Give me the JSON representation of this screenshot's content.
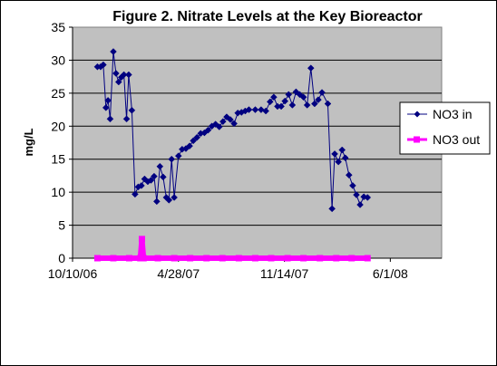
{
  "chart_data": {
    "type": "scatter",
    "title": "Figure 2. Nitrate Levels at the Key Bioreactor",
    "xlabel": "",
    "ylabel": "mg/L",
    "x_tick_labels": [
      "10/10/06",
      "4/28/07",
      "11/14/07",
      "6/1/08"
    ],
    "x_ticks": [
      "2006-10-10",
      "2007-04-28",
      "2007-11-14",
      "2008-06-01"
    ],
    "x_range": [
      "2006-10-10",
      "2008-09-06"
    ],
    "ylim": [
      0,
      35
    ],
    "y_ticks": [
      0,
      5,
      10,
      15,
      20,
      25,
      30,
      35
    ],
    "grid": "horizontal",
    "legend_position": "right",
    "background_color": "#C0C0C0",
    "series": [
      {
        "name": "NO3 in",
        "color": "#000080",
        "marker": "diamond",
        "line": true,
        "points": [
          [
            "2006-11-26",
            29.0
          ],
          [
            "2006-12-02",
            29.0
          ],
          [
            "2006-12-07",
            29.3
          ],
          [
            "2006-12-12",
            22.8
          ],
          [
            "2006-12-16",
            23.9
          ],
          [
            "2006-12-20",
            21.1
          ],
          [
            "2006-12-26",
            31.3
          ],
          [
            "2006-12-31",
            28.0
          ],
          [
            "2007-01-05",
            26.7
          ],
          [
            "2007-01-10",
            27.4
          ],
          [
            "2007-01-15",
            27.8
          ],
          [
            "2007-01-20",
            21.1
          ],
          [
            "2007-01-24",
            27.8
          ],
          [
            "2007-01-30",
            22.4
          ],
          [
            "2007-02-05",
            9.7
          ],
          [
            "2007-02-11",
            10.8
          ],
          [
            "2007-02-17",
            11.0
          ],
          [
            "2007-02-23",
            12.0
          ],
          [
            "2007-03-01",
            11.6
          ],
          [
            "2007-03-07",
            11.8
          ],
          [
            "2007-03-13",
            12.4
          ],
          [
            "2007-03-18",
            8.6
          ],
          [
            "2007-03-24",
            13.9
          ],
          [
            "2007-03-30",
            12.3
          ],
          [
            "2007-04-05",
            9.2
          ],
          [
            "2007-04-10",
            8.8
          ],
          [
            "2007-04-15",
            15.0
          ],
          [
            "2007-04-20",
            9.2
          ],
          [
            "2007-04-28",
            15.5
          ],
          [
            "2007-05-05",
            16.5
          ],
          [
            "2007-05-12",
            16.6
          ],
          [
            "2007-05-19",
            17.0
          ],
          [
            "2007-05-26",
            17.8
          ],
          [
            "2007-06-02",
            18.3
          ],
          [
            "2007-06-09",
            18.9
          ],
          [
            "2007-06-16",
            19.0
          ],
          [
            "2007-06-23",
            19.4
          ],
          [
            "2007-06-30",
            20.0
          ],
          [
            "2007-07-07",
            20.3
          ],
          [
            "2007-07-14",
            19.9
          ],
          [
            "2007-07-21",
            20.7
          ],
          [
            "2007-07-28",
            21.4
          ],
          [
            "2007-08-04",
            21.0
          ],
          [
            "2007-08-11",
            20.4
          ],
          [
            "2007-08-18",
            22.0
          ],
          [
            "2007-08-25",
            22.1
          ],
          [
            "2007-09-01",
            22.3
          ],
          [
            "2007-09-08",
            22.5
          ],
          [
            "2007-09-20",
            22.5
          ],
          [
            "2007-10-01",
            22.5
          ],
          [
            "2007-10-10",
            22.3
          ],
          [
            "2007-10-18",
            23.7
          ],
          [
            "2007-10-25",
            24.4
          ],
          [
            "2007-11-01",
            23.0
          ],
          [
            "2007-11-08",
            23.0
          ],
          [
            "2007-11-15",
            23.8
          ],
          [
            "2007-11-22",
            24.8
          ],
          [
            "2007-11-29",
            23.2
          ],
          [
            "2007-12-06",
            25.2
          ],
          [
            "2007-12-13",
            24.8
          ],
          [
            "2007-12-20",
            24.4
          ],
          [
            "2007-12-27",
            23.2
          ],
          [
            "2008-01-03",
            28.8
          ],
          [
            "2008-01-10",
            23.4
          ],
          [
            "2008-01-17",
            24.0
          ],
          [
            "2008-01-24",
            25.1
          ],
          [
            "2008-02-04",
            23.4
          ],
          [
            "2008-02-12",
            7.5
          ],
          [
            "2008-02-17",
            15.8
          ],
          [
            "2008-02-24",
            14.6
          ],
          [
            "2008-03-02",
            16.4
          ],
          [
            "2008-03-08",
            15.2
          ],
          [
            "2008-03-15",
            12.6
          ],
          [
            "2008-03-22",
            11.0
          ],
          [
            "2008-03-29",
            9.6
          ],
          [
            "2008-04-05",
            8.1
          ],
          [
            "2008-04-12",
            9.3
          ],
          [
            "2008-04-19",
            9.2
          ]
        ]
      },
      {
        "name": "NO3 out",
        "color": "#FF00FF",
        "marker": "square",
        "line": true,
        "points": [
          [
            "2006-11-26",
            0
          ],
          [
            "2006-12-26",
            0
          ],
          [
            "2007-01-25",
            0
          ],
          [
            "2007-02-15",
            0
          ],
          [
            "2007-02-18",
            2.9
          ],
          [
            "2007-02-21",
            0
          ],
          [
            "2007-03-20",
            0
          ],
          [
            "2007-04-20",
            0
          ],
          [
            "2007-05-20",
            0
          ],
          [
            "2007-06-20",
            0
          ],
          [
            "2007-07-20",
            0
          ],
          [
            "2007-08-20",
            0
          ],
          [
            "2007-09-20",
            0
          ],
          [
            "2007-10-20",
            0
          ],
          [
            "2007-11-20",
            0
          ],
          [
            "2007-12-20",
            0
          ],
          [
            "2008-01-20",
            0
          ],
          [
            "2008-02-20",
            0
          ],
          [
            "2008-03-20",
            0
          ],
          [
            "2008-04-19",
            0
          ]
        ]
      }
    ]
  }
}
